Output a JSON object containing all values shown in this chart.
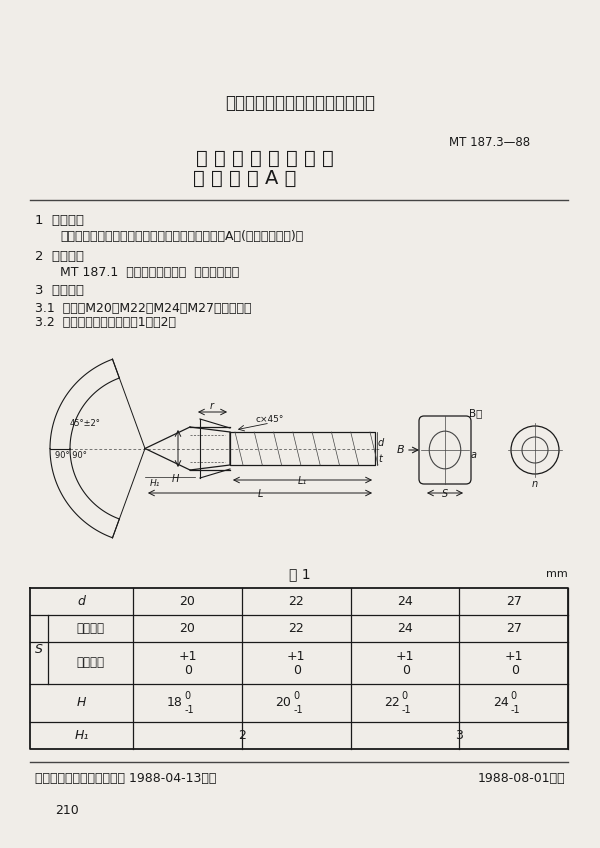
{
  "bg_color": "#f0ede8",
  "title_org": "中华人民共和国煤炭工业部部标准",
  "title_main1": "刮 板 输 送 机 紧 固 件",
  "title_main2": "棱 头 螺 栓 A 型",
  "std_number": "MT 187.3—88",
  "section1_title": "1  适用范围",
  "section1_body": "本标准适用于煤矿井下刮板输送机采用的棱头螺栓A型(以下简称螺栓)。",
  "section2_title": "2  引用标准",
  "section2_body": "MT 187.1  刮板输送机紧固件  螺栓技术条件",
  "section3_title": "3  产品分类",
  "section3_1": "3.1  产品有M20、M22、M24和M27四种规格。",
  "section3_2": "3.2  型式、尺寸见下图及表1和表2。",
  "table_title": "表 1",
  "table_unit": "mm",
  "footer_left": "中华人民共和国煤炭工业部 1988-04-13批准",
  "footer_right": "1988-08-01实施",
  "page_number": "210",
  "dark": "#1a1a1a",
  "mid": "#444444",
  "light": "#888888"
}
